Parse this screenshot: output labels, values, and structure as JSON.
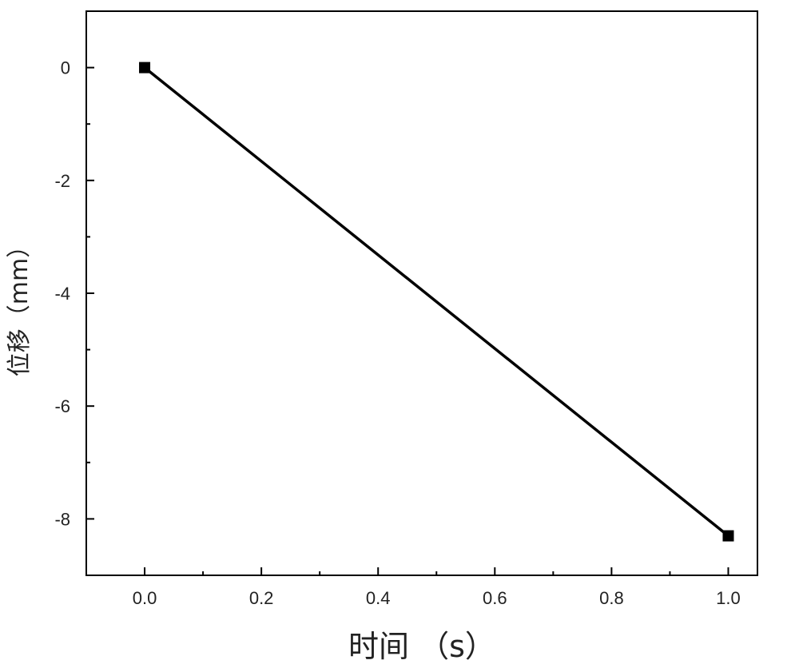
{
  "chart_data": {
    "type": "line",
    "title": "",
    "xlabel": "时间 （s）",
    "ylabel": "位移（mm）",
    "xlim": [
      -0.1,
      1.05
    ],
    "ylim": [
      -9,
      1
    ],
    "x_ticks": [
      0.0,
      0.2,
      0.4,
      0.6,
      0.8,
      1.0
    ],
    "x_tick_labels": [
      "0.0",
      "0.2",
      "0.4",
      "0.6",
      "0.8",
      "1.0"
    ],
    "y_ticks": [
      0,
      -2,
      -4,
      -6,
      -8
    ],
    "y_tick_labels": [
      "0",
      "-2",
      "-4",
      "-6",
      "-8"
    ],
    "grid": false,
    "legend": "none",
    "series": [
      {
        "x": [
          0.0,
          1.0
        ],
        "y": [
          0.0,
          -8.3
        ],
        "marker": "square",
        "color": "#000000"
      }
    ]
  }
}
